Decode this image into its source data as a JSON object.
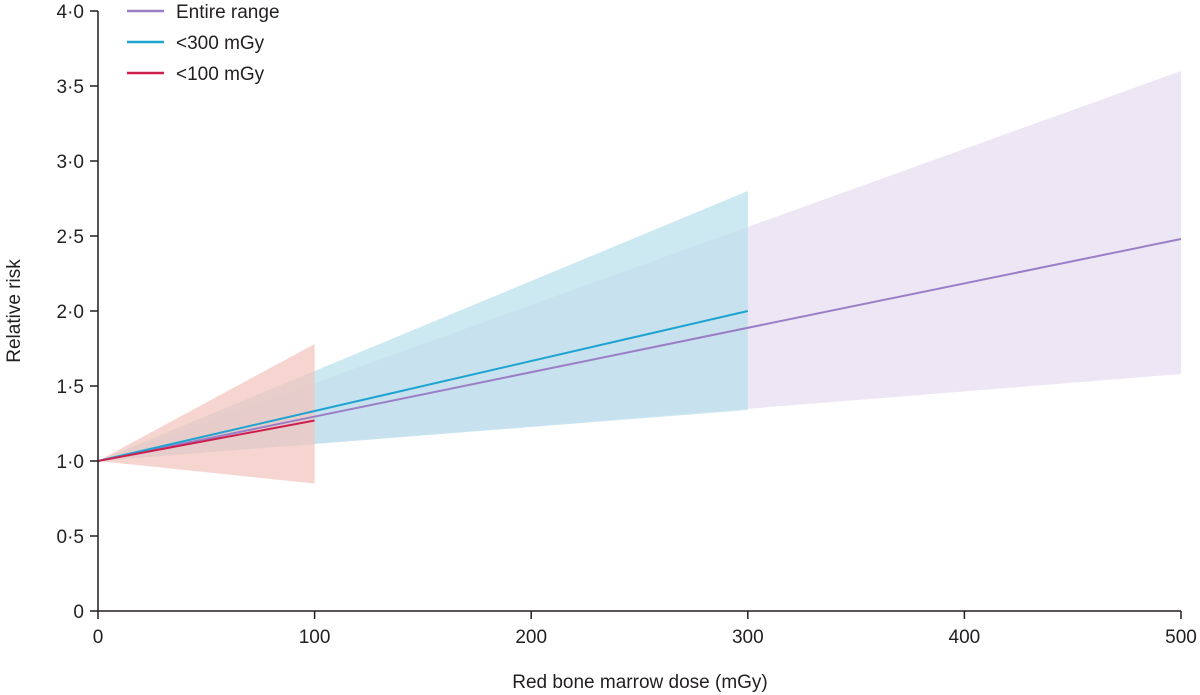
{
  "chart_data": {
    "type": "line",
    "title": "",
    "xlabel": "Red bone marrow dose (mGy)",
    "ylabel": "Relative risk",
    "xlim": [
      0,
      500
    ],
    "ylim": [
      0,
      4.0
    ],
    "x_ticks": [
      0,
      100,
      200,
      300,
      400,
      500
    ],
    "x_tick_labels": [
      "0",
      "100",
      "200",
      "300",
      "400",
      "500"
    ],
    "y_ticks": [
      0,
      0.5,
      1.0,
      1.5,
      2.0,
      2.5,
      3.0,
      3.5,
      4.0
    ],
    "y_tick_labels": [
      "0",
      "0·5",
      "1·0",
      "1·5",
      "2·0",
      "2·5",
      "3·0",
      "3·5",
      "4·0"
    ],
    "grid": false,
    "legend_position": "top-left",
    "series": [
      {
        "name": "Entire range",
        "color": "#9b7fc6",
        "band_color": "#e6ddf0",
        "x": [
          0,
          500
        ],
        "y": [
          1.0,
          2.48
        ],
        "ci_lower": [
          1.0,
          1.58
        ],
        "ci_upper": [
          1.0,
          3.6
        ]
      },
      {
        "name": "<300 mGy",
        "color": "#1fa3d0",
        "band_color": "#b9dfeb",
        "x": [
          0,
          300
        ],
        "y": [
          1.0,
          2.0
        ],
        "ci_lower": [
          1.0,
          1.34
        ],
        "ci_upper": [
          1.0,
          2.8
        ]
      },
      {
        "name": "<100 mGy",
        "color": "#cc1f4e",
        "band_color": "#f2c4bd",
        "x": [
          0,
          100
        ],
        "y": [
          1.0,
          1.27
        ],
        "ci_lower": [
          1.0,
          0.85
        ],
        "ci_upper": [
          1.0,
          1.78
        ]
      }
    ]
  }
}
